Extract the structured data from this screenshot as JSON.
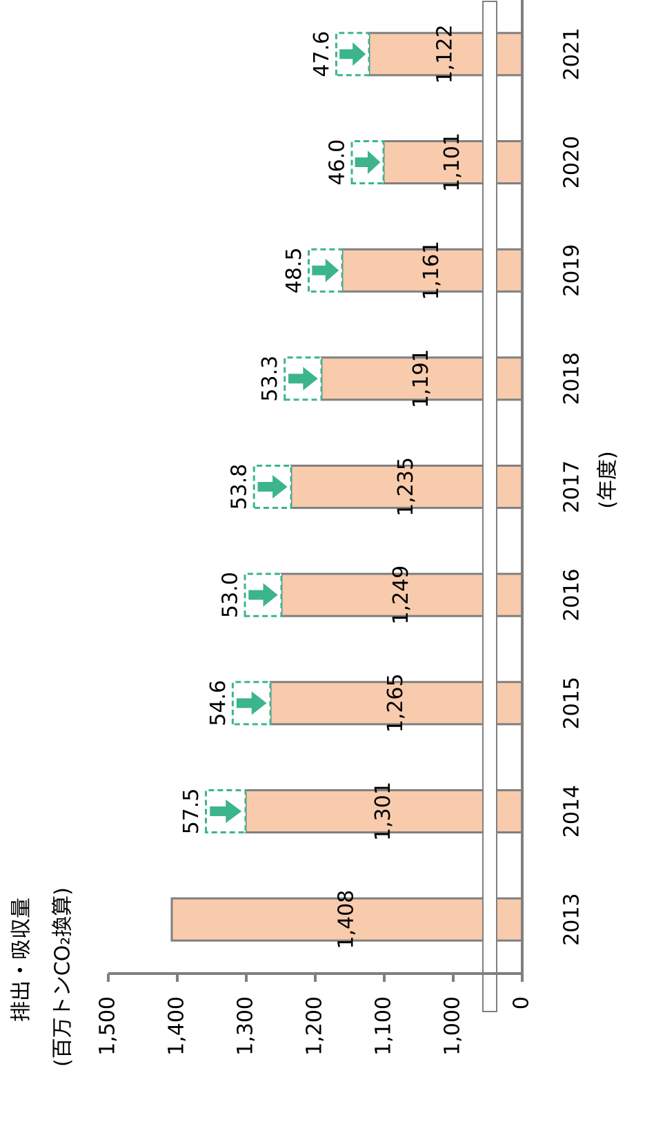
{
  "chart_data": {
    "type": "bar",
    "title": "排出・吸収量",
    "subtitle": "(百万トンCO₂換算)",
    "x_label": "(年度)",
    "categories": [
      "2013",
      "2014",
      "2015",
      "2016",
      "2017",
      "2018",
      "2019",
      "2020",
      "2021"
    ],
    "series": [
      {
        "color": "#f8cbad",
        "values": [
          1408,
          1301,
          1265,
          1249,
          1235,
          1191,
          1161,
          1101,
          1122
        ],
        "value_labels": [
          "1,408",
          "1,301",
          "1,265",
          "1,249",
          "1,235",
          "1,191",
          "1,161",
          "1,101",
          "1,122"
        ]
      },
      {
        "color": "#3cb48c",
        "values": [
          null,
          57.5,
          54.6,
          53.0,
          53.8,
          53.3,
          48.5,
          46.0,
          47.6
        ],
        "value_labels": [
          null,
          "57.5",
          "54.6",
          "53.0",
          "53.8",
          "53.3",
          "48.5",
          "46.0",
          "47.6"
        ]
      }
    ],
    "ylim": [
      0,
      1500
    ],
    "yticks": [
      0,
      {
        "value": 1000,
        "label": "1,000"
      },
      {
        "value": 1100,
        "label": "1,100"
      },
      {
        "value": 1200,
        "label": "1,200"
      },
      {
        "value": 1300,
        "label": "1,300"
      },
      {
        "value": 1400,
        "label": "1,400"
      },
      {
        "value": 1500,
        "label": "1,500"
      }
    ],
    "axis_break": true
  }
}
